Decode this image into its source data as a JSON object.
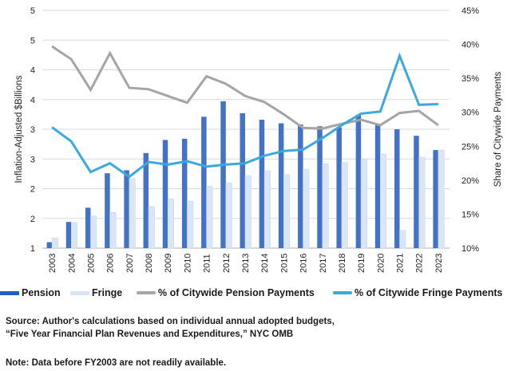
{
  "chart_data": {
    "type": "bar",
    "title": "",
    "categories": [
      "2003",
      "2004",
      "2005",
      "2006",
      "2007",
      "2008",
      "2009",
      "2010",
      "2011",
      "2012",
      "2013",
      "2014",
      "2015",
      "2016",
      "2017",
      "2018",
      "2019",
      "2020",
      "2021",
      "2022",
      "2023"
    ],
    "ylabel": "Inflation-Adjusted $Billions",
    "y2label": "Share of Citywide Payments",
    "xlabel": "",
    "ylim": [
      1,
      5
    ],
    "y2lim": [
      0.1,
      0.45
    ],
    "yticks": [
      1,
      1.5,
      2,
      2.5,
      3,
      3.5,
      4,
      4.5,
      5
    ],
    "ytick_labels": [
      "1",
      "2",
      "2",
      "3",
      "3",
      "4",
      "4",
      "5",
      "5"
    ],
    "y2ticks": [
      0.1,
      0.15,
      0.2,
      0.25,
      0.3,
      0.35,
      0.4,
      0.45
    ],
    "y2tick_labels": [
      "10%",
      "15%",
      "20%",
      "25%",
      "30%",
      "35%",
      "40%",
      "45%"
    ],
    "grid": true,
    "legend_position": "bottom",
    "series": [
      {
        "name": "Pension",
        "kind": "bar",
        "axis": "left",
        "color": "#4472C4",
        "values": [
          1.1,
          1.44,
          1.68,
          2.26,
          2.31,
          2.6,
          2.82,
          2.84,
          3.21,
          3.47,
          3.27,
          3.16,
          3.1,
          3.08,
          3.05,
          3.03,
          3.24,
          3.07,
          3.0,
          2.89,
          2.65
        ]
      },
      {
        "name": "Fringe",
        "kind": "bar",
        "axis": "left",
        "color": "#DAE6F6",
        "values": [
          1.17,
          1.43,
          1.54,
          1.6,
          2.17,
          1.7,
          1.83,
          1.79,
          2.04,
          2.1,
          2.22,
          2.3,
          2.24,
          2.33,
          2.42,
          2.44,
          2.5,
          2.58,
          1.3,
          2.53,
          2.65
        ]
      },
      {
        "name": "% of Citywide Pension Payments",
        "kind": "line",
        "axis": "right",
        "color": "#A5A5A5",
        "values": [
          0.397,
          0.378,
          0.333,
          0.387,
          0.336,
          0.334,
          0.324,
          0.314,
          0.353,
          0.342,
          0.324,
          0.315,
          0.297,
          0.277,
          0.276,
          0.283,
          0.289,
          0.281,
          0.299,
          0.302,
          0.281
        ]
      },
      {
        "name": "% of Citywide Fringe Payments",
        "kind": "line",
        "axis": "right",
        "color": "#3BA9E0",
        "values": [
          0.278,
          0.257,
          0.212,
          0.225,
          0.205,
          0.227,
          0.223,
          0.228,
          0.22,
          0.223,
          0.225,
          0.236,
          0.243,
          0.245,
          0.262,
          0.281,
          0.298,
          0.301,
          0.383,
          0.311,
          0.312
        ]
      }
    ]
  },
  "legend": {
    "items": [
      {
        "label": "Pension",
        "color": "#1F5FBF",
        "kind": "bar"
      },
      {
        "label": "Fringe",
        "color": "#DAE6F6",
        "kind": "bar"
      },
      {
        "label": "% of Citywide Pension Payments",
        "color": "#A5A5A5",
        "kind": "line"
      },
      {
        "label": "% of Citywide Fringe Payments",
        "color": "#3BA9E0",
        "kind": "line"
      }
    ]
  },
  "footer": {
    "source_line1": "Source: Author's calculations based on individual annual adopted budgets,",
    "source_line2": "“Five Year Financial Plan Revenues and Expenditures,” NYC OMB",
    "note": "Note: Data before FY2003 are not readily available."
  },
  "colors": {
    "grid": "#D9D9D9",
    "axis": "#BFBFBF"
  }
}
